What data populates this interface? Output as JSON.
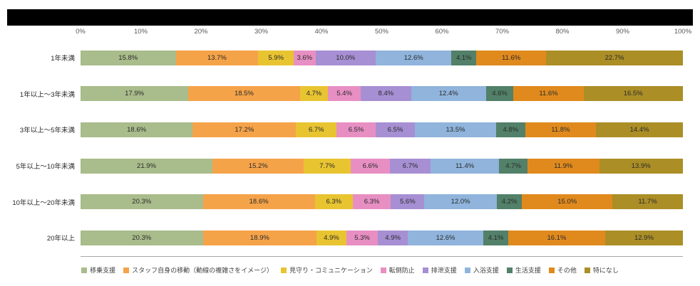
{
  "chart_data": {
    "type": "bar",
    "variant": "100-percent-stacked-horizontal",
    "x_axis": {
      "ticks": [
        "0%",
        "10%",
        "20%",
        "30%",
        "40%",
        "50%",
        "60%",
        "70%",
        "80%",
        "90%",
        "100%"
      ],
      "range": [
        0,
        100
      ]
    },
    "categories": [
      "1年未満",
      "1年以上～3年未満",
      "3年以上～5年未満",
      "5年以上～10年未満",
      "10年以上～20年未満",
      "20年以上"
    ],
    "series": [
      {
        "name": "移乗支援",
        "color": "#A9BC8B",
        "values": [
          15.8,
          17.9,
          18.6,
          21.9,
          20.3,
          20.3
        ]
      },
      {
        "name": "スタッフ自身の移動（動線の複雑さをイメージ）",
        "color": "#F5A349",
        "values": [
          13.7,
          18.5,
          17.2,
          15.2,
          18.6,
          18.9
        ]
      },
      {
        "name": "見守り・コミュニケーション",
        "color": "#E8C431",
        "values": [
          5.9,
          4.7,
          6.7,
          7.7,
          6.3,
          4.9
        ]
      },
      {
        "name": "転倒防止",
        "color": "#E78FC3",
        "values": [
          3.6,
          5.4,
          6.5,
          6.6,
          6.3,
          5.3
        ]
      },
      {
        "name": "排泄支援",
        "color": "#A78FD3",
        "values": [
          10.0,
          8.4,
          6.5,
          6.7,
          5.6,
          4.9
        ]
      },
      {
        "name": "入浴支援",
        "color": "#90B4DC",
        "values": [
          12.6,
          12.4,
          13.5,
          11.4,
          12.0,
          12.6
        ]
      },
      {
        "name": "生活支援",
        "color": "#528069",
        "values": [
          4.1,
          4.6,
          4.8,
          4.7,
          4.2,
          4.1
        ]
      },
      {
        "name": "その他",
        "color": "#E08A1E",
        "values": [
          11.6,
          11.6,
          11.8,
          11.9,
          15.0,
          16.1
        ]
      },
      {
        "name": "特になし",
        "color": "#AB8E26",
        "values": [
          22.7,
          16.5,
          14.4,
          13.9,
          11.7,
          12.9
        ]
      }
    ],
    "value_suffix": "%",
    "legend_position": "bottom",
    "grid": false
  }
}
